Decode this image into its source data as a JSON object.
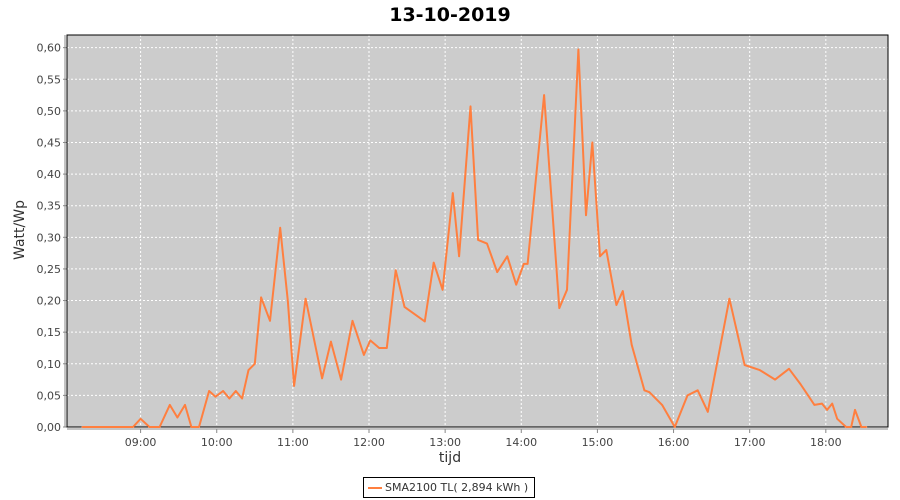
{
  "chart_data": {
    "type": "line",
    "title": "13-10-2019",
    "xlabel": "tijd",
    "ylabel": "Watt/Wp",
    "xlim": [
      "08:02",
      "18:49"
    ],
    "ylim": [
      0,
      0.62
    ],
    "x_ticks": [
      "09:00",
      "10:00",
      "11:00",
      "12:00",
      "13:00",
      "14:00",
      "15:00",
      "16:00",
      "17:00",
      "18:00"
    ],
    "y_ticks": [
      "0,00",
      "0,05",
      "0,10",
      "0,15",
      "0,20",
      "0,25",
      "0,30",
      "0,35",
      "0,40",
      "0,45",
      "0,50",
      "0,55",
      "0,60"
    ],
    "grid": true,
    "legend_position": "bottom",
    "plot_background": "#cccccc",
    "series": [
      {
        "name": "SMA2100 TL( 2,894 kWh )",
        "color": "#ff7f3f",
        "points": [
          [
            "08:14",
            0
          ],
          [
            "08:54",
            0
          ],
          [
            "09:00",
            0.013
          ],
          [
            "09:07",
            0
          ],
          [
            "09:15",
            0
          ],
          [
            "09:23",
            0.035
          ],
          [
            "09:29",
            0.015
          ],
          [
            "09:35",
            0.035
          ],
          [
            "09:40",
            0
          ],
          [
            "09:46",
            0
          ],
          [
            "09:54",
            0.057
          ],
          [
            "09:59",
            0.048
          ],
          [
            "10:05",
            0.057
          ],
          [
            "10:10",
            0.045
          ],
          [
            "10:15",
            0.057
          ],
          [
            "10:20",
            0.045
          ],
          [
            "10:25",
            0.09
          ],
          [
            "10:30",
            0.1
          ],
          [
            "10:35",
            0.205
          ],
          [
            "10:42",
            0.168
          ],
          [
            "10:50",
            0.315
          ],
          [
            "10:56",
            0.2
          ],
          [
            "11:01",
            0.065
          ],
          [
            "11:10",
            0.203
          ],
          [
            "11:23",
            0.077
          ],
          [
            "11:30",
            0.135
          ],
          [
            "11:38",
            0.075
          ],
          [
            "11:47",
            0.168
          ],
          [
            "11:56",
            0.114
          ],
          [
            "12:01",
            0.137
          ],
          [
            "12:08",
            0.125
          ],
          [
            "12:14",
            0.125
          ],
          [
            "12:21",
            0.248
          ],
          [
            "12:28",
            0.19
          ],
          [
            "12:44",
            0.167
          ],
          [
            "12:51",
            0.26
          ],
          [
            "12:58",
            0.217
          ],
          [
            "13:06",
            0.37
          ],
          [
            "13:11",
            0.27
          ],
          [
            "13:20",
            0.507
          ],
          [
            "13:26",
            0.296
          ],
          [
            "13:33",
            0.29
          ],
          [
            "13:41",
            0.245
          ],
          [
            "13:49",
            0.27
          ],
          [
            "13:56",
            0.225
          ],
          [
            "14:02",
            0.258
          ],
          [
            "14:05",
            0.258
          ],
          [
            "14:18",
            0.525
          ],
          [
            "14:30",
            0.188
          ],
          [
            "14:36",
            0.217
          ],
          [
            "14:45",
            0.597
          ],
          [
            "14:51",
            0.335
          ],
          [
            "14:56",
            0.45
          ],
          [
            "15:02",
            0.27
          ],
          [
            "15:07",
            0.28
          ],
          [
            "15:15",
            0.193
          ],
          [
            "15:20",
            0.215
          ],
          [
            "15:27",
            0.13
          ],
          [
            "15:37",
            0.058
          ],
          [
            "15:41",
            0.055
          ],
          [
            "15:51",
            0.035
          ],
          [
            "16:01",
            0
          ],
          [
            "16:11",
            0.05
          ],
          [
            "16:19",
            0.058
          ],
          [
            "16:27",
            0.024
          ],
          [
            "16:44",
            0.203
          ],
          [
            "16:56",
            0.098
          ],
          [
            "17:08",
            0.09
          ],
          [
            "17:20",
            0.075
          ],
          [
            "17:31",
            0.092
          ],
          [
            "17:40",
            0.068
          ],
          [
            "17:46",
            0.05
          ],
          [
            "17:51",
            0.035
          ],
          [
            "17:57",
            0.037
          ],
          [
            "18:01",
            0.027
          ],
          [
            "18:05",
            0.037
          ],
          [
            "18:09",
            0.013
          ],
          [
            "18:16",
            0
          ],
          [
            "18:20",
            0
          ],
          [
            "18:23",
            0.027
          ],
          [
            "18:28",
            0
          ],
          [
            "18:32",
            0
          ]
        ]
      }
    ]
  }
}
